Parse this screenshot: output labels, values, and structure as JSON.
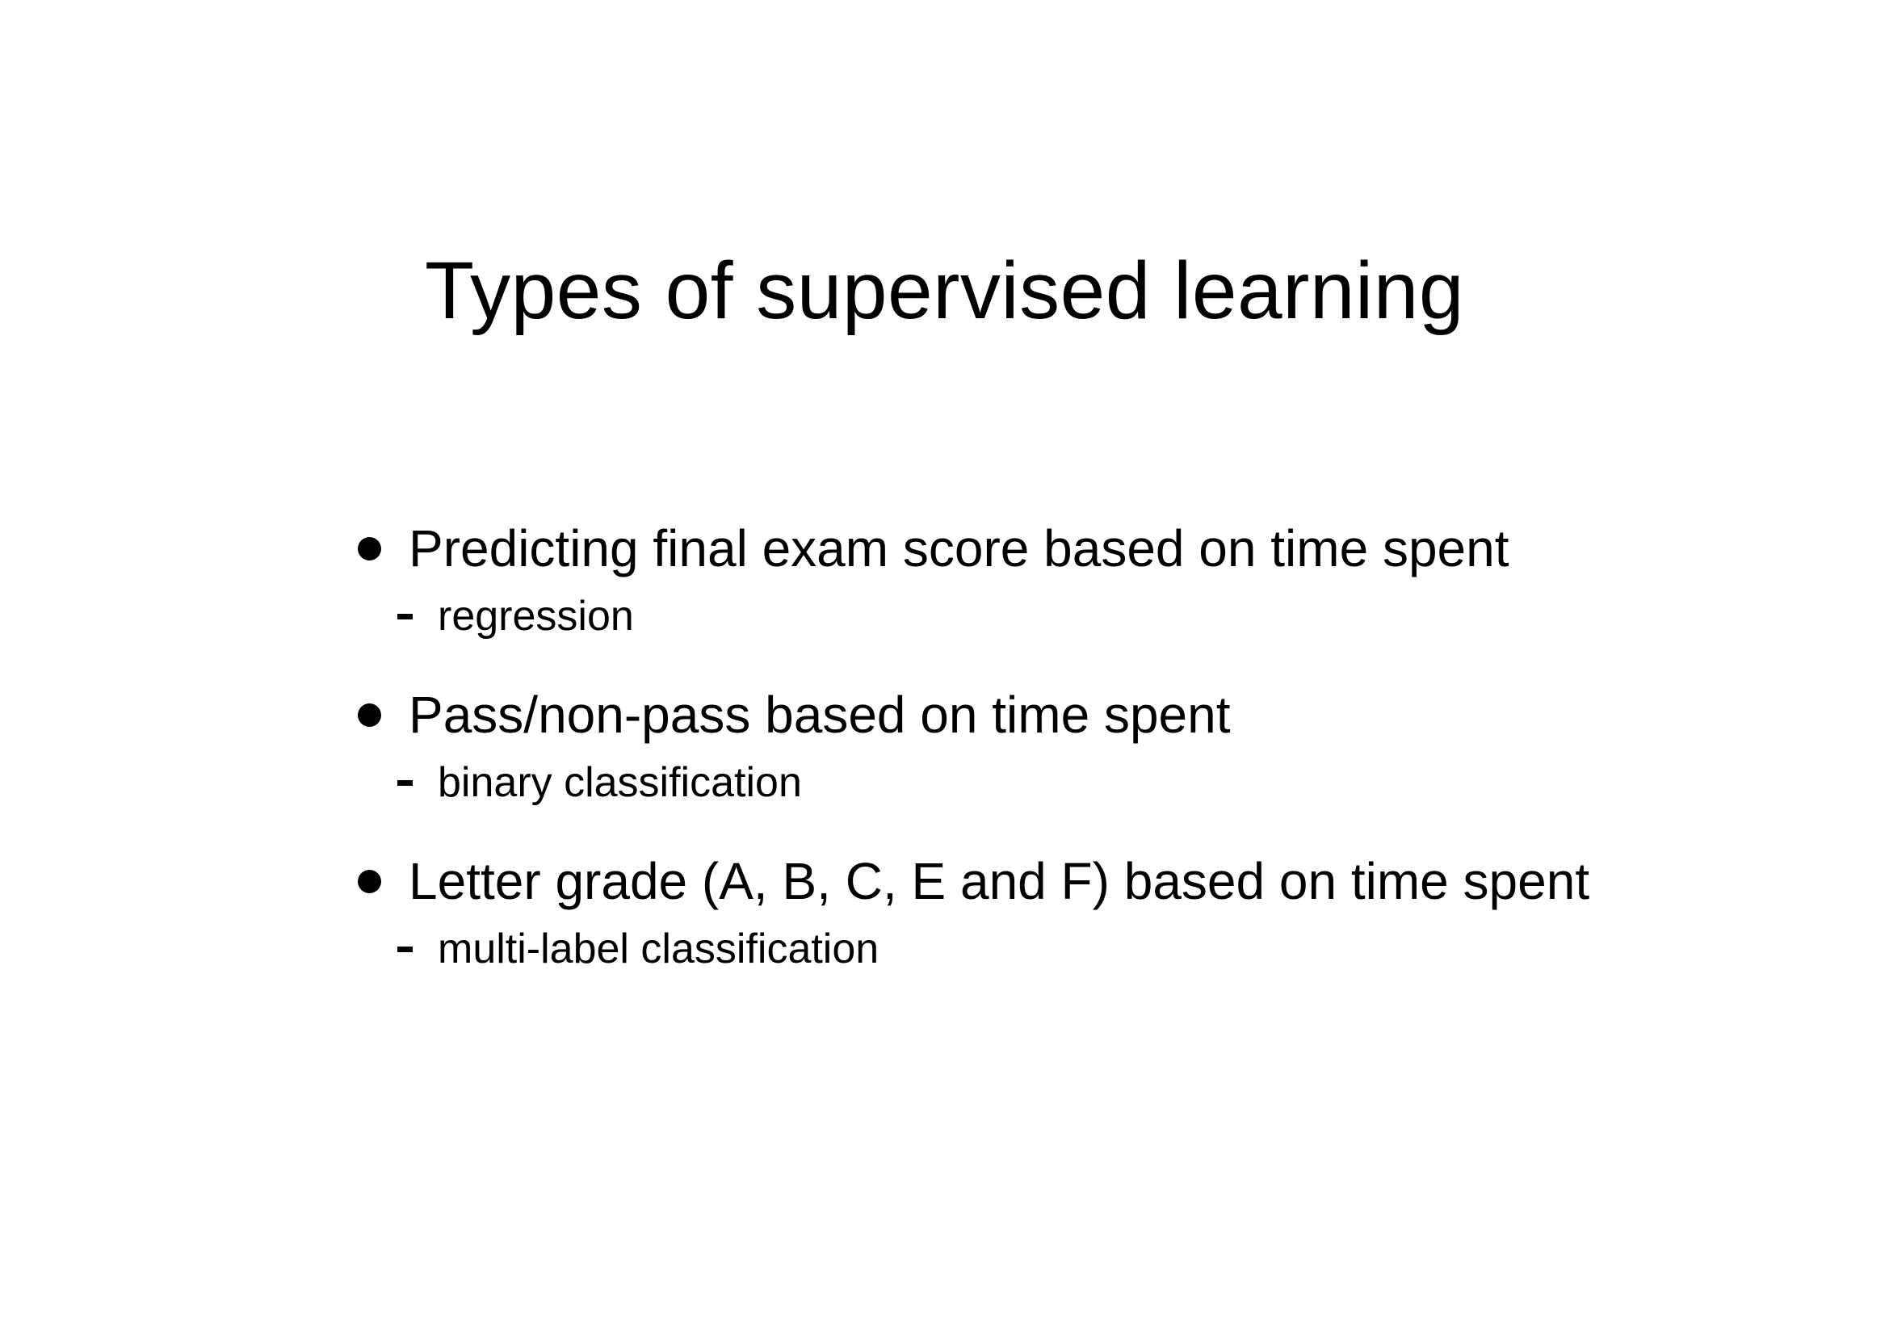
{
  "slide": {
    "title": "Types of supervised learning",
    "bullets": [
      {
        "text": "Predicting final exam score based on time spent",
        "sub": "regression"
      },
      {
        "text": "Pass/non-pass based on time spent",
        "sub": "binary classification"
      },
      {
        "text": "Letter grade (A, B, C, E and F) based on time spent",
        "sub": "multi-label classification"
      }
    ]
  },
  "icons": {
    "bullet_marker": "filled-circle-bullet-icon",
    "sub_marker": "dash-icon"
  },
  "colors": {
    "background": "#ffffff",
    "text": "#000000"
  }
}
